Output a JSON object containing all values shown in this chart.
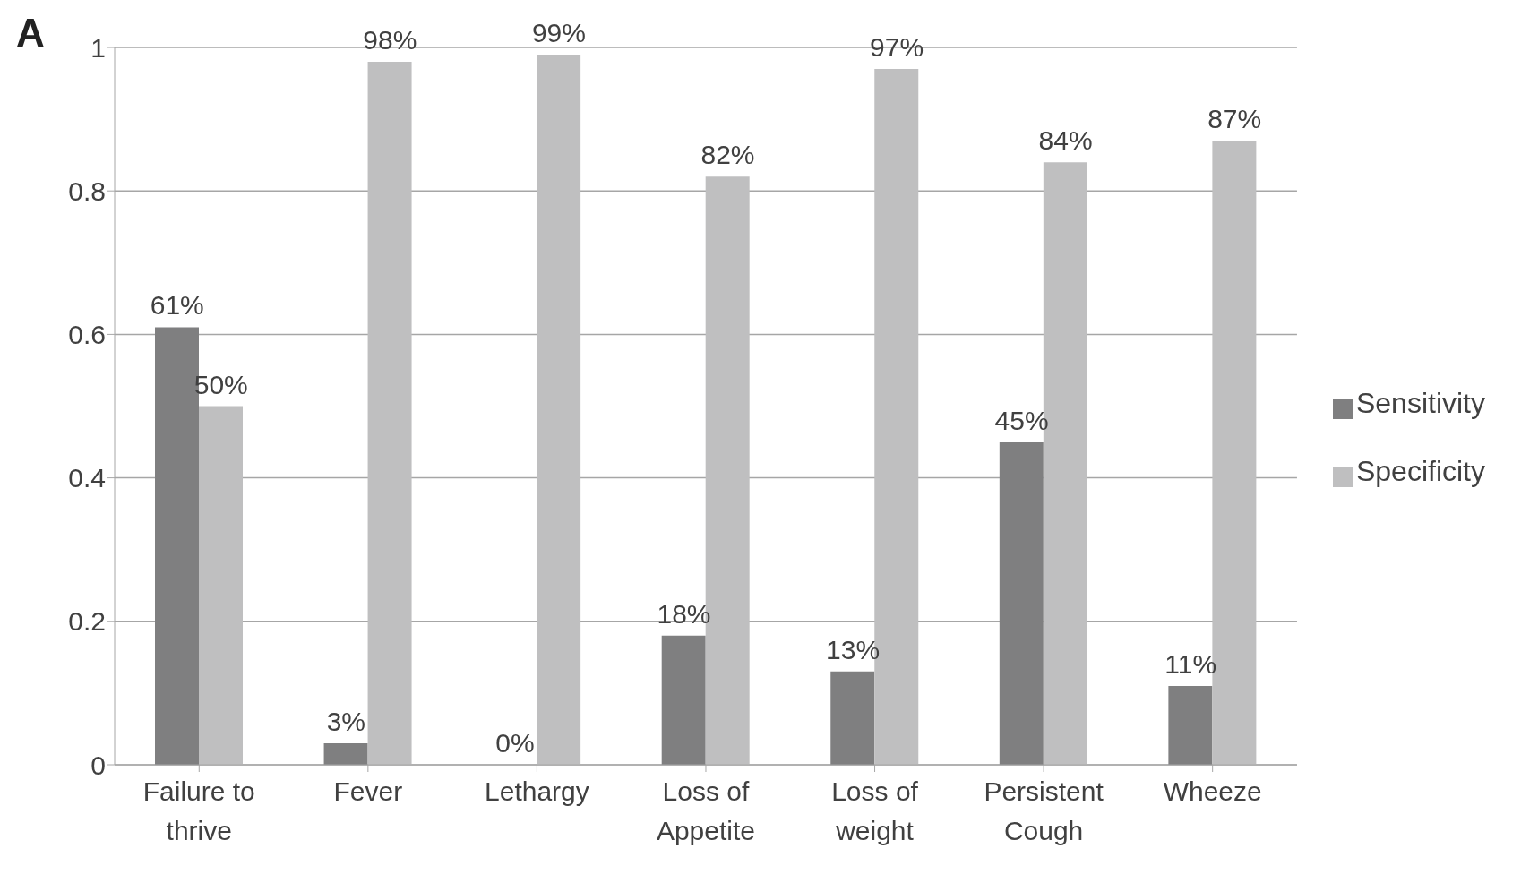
{
  "chart_data": {
    "type": "bar",
    "title": "A",
    "categories": [
      "Failure to thrive",
      "Fever",
      "Lethargy",
      "Loss of Appetite",
      "Loss of weight",
      "Persistent Cough",
      "Wheeze"
    ],
    "series": [
      {
        "name": "Sensitivity",
        "color": "#7f7f80",
        "values": [
          0.61,
          0.03,
          0,
          0.18,
          0.13,
          0.45,
          0.11
        ],
        "value_labels": [
          "61%",
          "3%",
          "0%",
          "18%",
          "13%",
          "45%",
          "11%"
        ]
      },
      {
        "name": "Specificity",
        "color": "#bfbfc0",
        "values": [
          0.5,
          0.98,
          0.99,
          0.82,
          0.97,
          0.84,
          0.87
        ],
        "value_labels": [
          "50%",
          "98%",
          "99%",
          "82%",
          "97%",
          "84%",
          "87%"
        ]
      }
    ],
    "ylim": [
      0,
      1
    ],
    "yticks": [
      0,
      0.2,
      0.4,
      0.6,
      0.8,
      1
    ],
    "grid": "y",
    "legend": "right"
  }
}
